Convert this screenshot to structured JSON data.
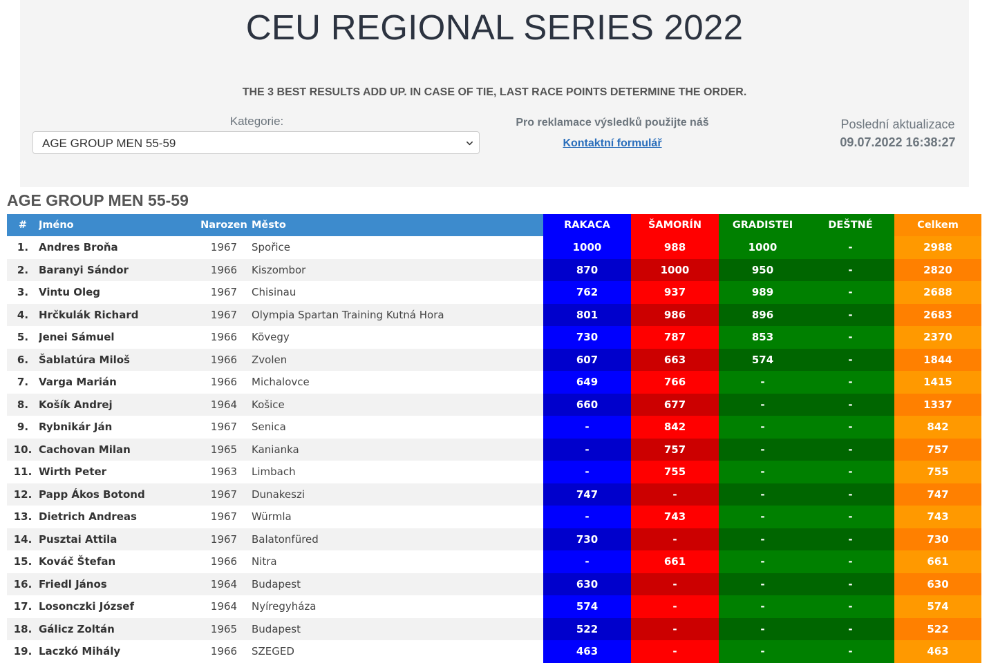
{
  "header": {
    "title": "CEU REGIONAL SERIES 2022",
    "rules_note": "THE 3 BEST RESULTS ADD UP. IN CASE OF TIE, LAST RACE POINTS DETERMINE THE ORDER.",
    "category_label": "Kategorie:",
    "category_selected": "AGE GROUP MEN 55-59",
    "reclamation_text": "Pro reklamace výsledků použijte náš",
    "contact_link": "Kontaktní formulář",
    "last_update_label": "Poslední aktualizace",
    "last_update_value": "09.07.2022 16:38:27"
  },
  "section_title": "AGE GROUP MEN 55-59",
  "table": {
    "columns": {
      "no": "#",
      "name": "Jméno",
      "born": "Narozen",
      "city": "Město",
      "races": [
        "RAKACA",
        "ŠAMORÍN",
        "GRADISTEI",
        "DEŠTNÉ"
      ],
      "total": "Celkem"
    },
    "colors": {
      "header_left": "#3d8bcd",
      "races_header": [
        "#0000ff",
        "#ff0000",
        "#008000",
        "#008000"
      ],
      "races_row_light": [
        "#0000ff",
        "#ff0000",
        "#008000",
        "#008000"
      ],
      "races_row_dark": [
        "#0000cc",
        "#cc0000",
        "#006600",
        "#006600"
      ],
      "total_header": "#ff8c00",
      "total_light": "#ff9900",
      "total_dark": "#ff8000"
    },
    "rows": [
      {
        "rank": "1.",
        "name": "Andres Broňa",
        "born": "1967",
        "city": "Spořice",
        "races": [
          "1000",
          "988",
          "1000",
          "-"
        ],
        "total": "2988"
      },
      {
        "rank": "2.",
        "name": "Baranyi Sándor",
        "born": "1966",
        "city": "Kiszombor",
        "races": [
          "870",
          "1000",
          "950",
          "-"
        ],
        "total": "2820"
      },
      {
        "rank": "3.",
        "name": "Vintu Oleg",
        "born": "1967",
        "city": "Chisinau",
        "races": [
          "762",
          "937",
          "989",
          "-"
        ],
        "total": "2688"
      },
      {
        "rank": "4.",
        "name": "Hrčkulák Richard",
        "born": "1967",
        "city": "Olympia Spartan Training Kutná Hora",
        "races": [
          "801",
          "986",
          "896",
          "-"
        ],
        "total": "2683"
      },
      {
        "rank": "5.",
        "name": "Jenei Sámuel",
        "born": "1966",
        "city": "Kövegy",
        "races": [
          "730",
          "787",
          "853",
          "-"
        ],
        "total": "2370"
      },
      {
        "rank": "6.",
        "name": "Šablatúra Miloš",
        "born": "1966",
        "city": "Zvolen",
        "races": [
          "607",
          "663",
          "574",
          "-"
        ],
        "total": "1844"
      },
      {
        "rank": "7.",
        "name": "Varga Marián",
        "born": "1966",
        "city": "Michalovce",
        "races": [
          "649",
          "766",
          "-",
          "-"
        ],
        "total": "1415"
      },
      {
        "rank": "8.",
        "name": "Košík Andrej",
        "born": "1964",
        "city": "Košice",
        "races": [
          "660",
          "677",
          "-",
          "-"
        ],
        "total": "1337"
      },
      {
        "rank": "9.",
        "name": "Rybnikár Ján",
        "born": "1967",
        "city": "Senica",
        "races": [
          "-",
          "842",
          "-",
          "-"
        ],
        "total": "842"
      },
      {
        "rank": "10.",
        "name": "Cachovan Milan",
        "born": "1965",
        "city": "Kanianka",
        "races": [
          "-",
          "757",
          "-",
          "-"
        ],
        "total": "757"
      },
      {
        "rank": "11.",
        "name": "Wirth Peter",
        "born": "1963",
        "city": "Limbach",
        "races": [
          "-",
          "755",
          "-",
          "-"
        ],
        "total": "755"
      },
      {
        "rank": "12.",
        "name": "Papp Ákos Botond",
        "born": "1967",
        "city": "Dunakeszi",
        "races": [
          "747",
          "-",
          "-",
          "-"
        ],
        "total": "747"
      },
      {
        "rank": "13.",
        "name": "Dietrich Andreas",
        "born": "1967",
        "city": "Würmla",
        "races": [
          "-",
          "743",
          "-",
          "-"
        ],
        "total": "743"
      },
      {
        "rank": "14.",
        "name": "Pusztai Attila",
        "born": "1967",
        "city": "Balatonfüred",
        "races": [
          "730",
          "-",
          "-",
          "-"
        ],
        "total": "730"
      },
      {
        "rank": "15.",
        "name": "Kováč Štefan",
        "born": "1966",
        "city": "Nitra",
        "races": [
          "-",
          "661",
          "-",
          "-"
        ],
        "total": "661"
      },
      {
        "rank": "16.",
        "name": "Friedl János",
        "born": "1964",
        "city": "Budapest",
        "races": [
          "630",
          "-",
          "-",
          "-"
        ],
        "total": "630"
      },
      {
        "rank": "17.",
        "name": "Losonczki József",
        "born": "1964",
        "city": "Nyíregyháza",
        "races": [
          "574",
          "-",
          "-",
          "-"
        ],
        "total": "574"
      },
      {
        "rank": "18.",
        "name": "Gálicz Zoltán",
        "born": "1965",
        "city": "Budapest",
        "races": [
          "522",
          "-",
          "-",
          "-"
        ],
        "total": "522"
      },
      {
        "rank": "19.",
        "name": "Laczkó Mihály",
        "born": "1966",
        "city": "SZEGED",
        "races": [
          "463",
          "-",
          "-",
          "-"
        ],
        "total": "463"
      }
    ]
  }
}
